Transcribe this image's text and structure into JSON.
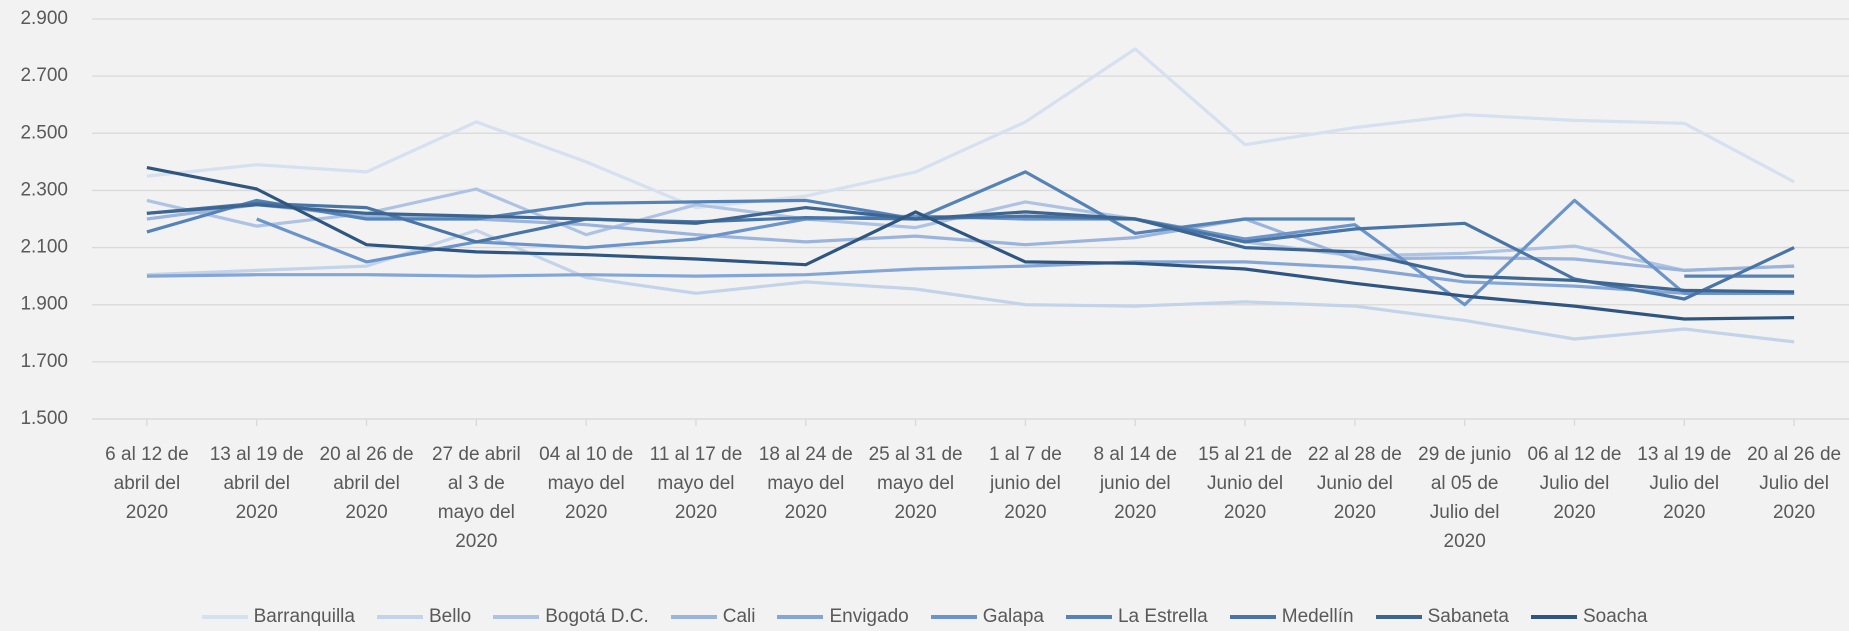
{
  "chart_data": {
    "type": "line",
    "categories": [
      "6 al 12 de abril del 2020",
      "13 al 19 de abril del 2020",
      "20 al 26 de abril del 2020",
      "27 de abril al 3 de mayo del 2020",
      "04 al 10 de mayo del 2020",
      "11 al 17 de mayo del 2020",
      "18 al 24 de mayo del 2020",
      "25 al 31 de mayo del 2020",
      "1 al 7 de junio del 2020",
      "8 al 14 de junio del 2020",
      "15 al 21 de Junio del 2020",
      "22 al 28 de Junio del 2020",
      "29 de junio al 05 de Julio del 2020",
      "06 al 12 de Julio del 2020",
      "13 al 19 de Julio del 2020",
      "20 al 26 de Julio del 2020"
    ],
    "series": [
      {
        "name": "Barranquilla",
        "color": "#d5e0f0",
        "values": [
          2350,
          2390,
          2365,
          2540,
          2400,
          2240,
          2280,
          2365,
          2540,
          2795,
          2460,
          2520,
          2565,
          2545,
          2535,
          2330
        ]
      },
      {
        "name": "Bello",
        "color": "#c3d3ea",
        "values": [
          2005,
          2020,
          2035,
          2160,
          1995,
          1940,
          1980,
          1955,
          1900,
          1895,
          1910,
          1895,
          1845,
          1780,
          1815,
          1770
        ]
      },
      {
        "name": "Bogotá D.C.",
        "color": "#aec3e3",
        "values": [
          2265,
          2175,
          2220,
          2305,
          2145,
          2250,
          2200,
          2170,
          2260,
          2200,
          2120,
          2070,
          2080,
          2105,
          2020,
          2035
        ]
      },
      {
        "name": "Cali",
        "color": "#9ab4dc",
        "values": [
          2200,
          2250,
          2210,
          2200,
          2180,
          2145,
          2120,
          2140,
          2110,
          2135,
          2200,
          2060,
          2065,
          2060,
          2020,
          2035
        ]
      },
      {
        "name": "Envigado",
        "color": "#84a6d6",
        "values": [
          2000,
          2005,
          2005,
          2000,
          2005,
          2000,
          2005,
          2025,
          2035,
          2050,
          2050,
          2030,
          1980,
          1965,
          1940,
          1940
        ]
      },
      {
        "name": "Galapa",
        "color": "#6b94cb",
        "values": [
          null,
          2200,
          2050,
          2120,
          2100,
          2130,
          2200,
          2210,
          2200,
          2200,
          2130,
          2180,
          1900,
          2265,
          1940,
          1940
        ]
      },
      {
        "name": "La Estrella",
        "color": "#5583b8",
        "values": [
          2155,
          2265,
          2200,
          2200,
          2255,
          2260,
          2265,
          2200,
          2365,
          2150,
          2200,
          2200,
          null,
          null,
          2000,
          2000
        ]
      },
      {
        "name": "Medellín",
        "color": "#4874a6",
        "values": [
          2220,
          2255,
          2240,
          2120,
          2200,
          2190,
          2205,
          2200,
          2210,
          2200,
          2120,
          2165,
          2185,
          1990,
          1920,
          2100
        ]
      },
      {
        "name": "Sabaneta",
        "color": "#3c6592",
        "values": [
          2220,
          2250,
          2220,
          2210,
          2200,
          2185,
          2240,
          2200,
          2225,
          2200,
          2100,
          2085,
          2000,
          1985,
          1950,
          1945
        ]
      },
      {
        "name": "Soacha",
        "color": "#2f5680",
        "values": [
          2380,
          2305,
          2110,
          2085,
          2075,
          2060,
          2040,
          2225,
          2050,
          2045,
          2025,
          1975,
          1930,
          1895,
          1850,
          1855
        ]
      }
    ],
    "ylim": [
      1500,
      2900
    ],
    "yticks": [
      {
        "value": 1500,
        "label": "1.500"
      },
      {
        "value": 1700,
        "label": "1.700"
      },
      {
        "value": 1900,
        "label": "1.900"
      },
      {
        "value": 2100,
        "label": "2.100"
      },
      {
        "value": 2300,
        "label": "2.300"
      },
      {
        "value": 2500,
        "label": "2.500"
      },
      {
        "value": 2700,
        "label": "2.700"
      },
      {
        "value": 2900,
        "label": "2.900"
      }
    ],
    "grid": true,
    "legend": "bottom"
  }
}
